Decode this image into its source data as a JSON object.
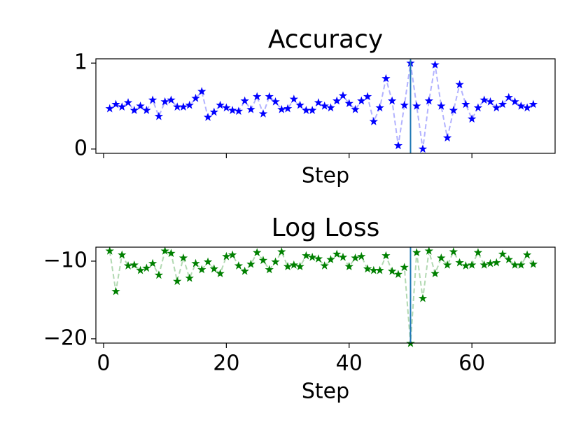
{
  "chart_data": [
    {
      "type": "line",
      "title": "Accuracy",
      "xlabel": "Step",
      "x": [
        1,
        2,
        3,
        4,
        5,
        6,
        7,
        8,
        9,
        10,
        11,
        12,
        13,
        14,
        15,
        16,
        17,
        18,
        19,
        20,
        21,
        22,
        23,
        24,
        25,
        26,
        27,
        28,
        29,
        30,
        31,
        32,
        33,
        34,
        35,
        36,
        37,
        38,
        39,
        40,
        41,
        42,
        43,
        44,
        45,
        46,
        47,
        48,
        49,
        50,
        51,
        52,
        53,
        54,
        55,
        56,
        57,
        58,
        59,
        60,
        61,
        62,
        63,
        64,
        65,
        66,
        67,
        68,
        69,
        70
      ],
      "values": [
        0.47,
        0.52,
        0.49,
        0.54,
        0.45,
        0.5,
        0.45,
        0.57,
        0.38,
        0.55,
        0.57,
        0.49,
        0.49,
        0.51,
        0.59,
        0.67,
        0.37,
        0.43,
        0.51,
        0.48,
        0.45,
        0.44,
        0.56,
        0.46,
        0.61,
        0.41,
        0.61,
        0.55,
        0.46,
        0.47,
        0.58,
        0.51,
        0.45,
        0.45,
        0.54,
        0.5,
        0.48,
        0.56,
        0.62,
        0.53,
        0.46,
        0.56,
        0.61,
        0.32,
        0.48,
        0.82,
        0.56,
        0.04,
        0.51,
        1.0,
        0.5,
        0.0,
        0.56,
        0.98,
        0.5,
        0.13,
        0.45,
        0.75,
        0.52,
        0.35,
        0.48,
        0.57,
        0.55,
        0.48,
        0.52,
        0.6,
        0.55,
        0.5,
        0.48,
        0.52
      ],
      "color": "#0000ff",
      "vline": 50,
      "vline_color": "#1f77b4",
      "xlim": [
        -1.25,
        73.55
      ],
      "ylim": [
        -0.05,
        1.05
      ],
      "xticks": [
        0,
        20,
        40,
        60
      ],
      "xticklabels": false,
      "yticks": [
        0,
        1
      ]
    },
    {
      "type": "line",
      "title": "Log Loss",
      "xlabel": "Step",
      "x": [
        1,
        2,
        3,
        4,
        5,
        6,
        7,
        8,
        9,
        10,
        11,
        12,
        13,
        14,
        15,
        16,
        17,
        18,
        19,
        20,
        21,
        22,
        23,
        24,
        25,
        26,
        27,
        28,
        29,
        30,
        31,
        32,
        33,
        34,
        35,
        36,
        37,
        38,
        39,
        40,
        41,
        42,
        43,
        44,
        45,
        46,
        47,
        48,
        49,
        50,
        51,
        52,
        53,
        54,
        55,
        56,
        57,
        58,
        59,
        60,
        61,
        62,
        63,
        64,
        65,
        66,
        67,
        68,
        69,
        70
      ],
      "values": [
        -8.7,
        -13.9,
        -9.2,
        -10.6,
        -10.5,
        -11.2,
        -10.9,
        -10.3,
        -11.8,
        -8.7,
        -9.0,
        -12.6,
        -9.6,
        -12.2,
        -10.3,
        -11.1,
        -10.1,
        -11.0,
        -11.6,
        -9.4,
        -9.2,
        -10.6,
        -11.3,
        -10.4,
        -8.9,
        -9.9,
        -11.1,
        -10.1,
        -8.8,
        -10.7,
        -10.5,
        -10.7,
        -9.3,
        -9.5,
        -9.7,
        -10.6,
        -9.8,
        -9.1,
        -9.5,
        -10.7,
        -9.6,
        -9.4,
        -11.0,
        -11.2,
        -11.2,
        -9.3,
        -11.3,
        -11.7,
        -10.8,
        -20.6,
        -8.9,
        -14.8,
        -8.7,
        -11.6,
        -9.6,
        -10.5,
        -8.8,
        -10.2,
        -10.6,
        -10.5,
        -8.9,
        -10.5,
        -10.3,
        -10.2,
        -9.1,
        -9.8,
        -10.5,
        -10.5,
        -9.2,
        -10.4
      ],
      "color": "#008000",
      "vline": 50,
      "vline_color": "#1f77b4",
      "xlim": [
        -1.25,
        73.55
      ],
      "ylim": [
        -20.55,
        -8.2
      ],
      "xticks": [
        0,
        20,
        40,
        60
      ],
      "xticklabels": true,
      "yticks": [
        {
          "value": -20,
          "label": "−20"
        },
        {
          "value": -10,
          "label": "−10"
        }
      ]
    }
  ]
}
